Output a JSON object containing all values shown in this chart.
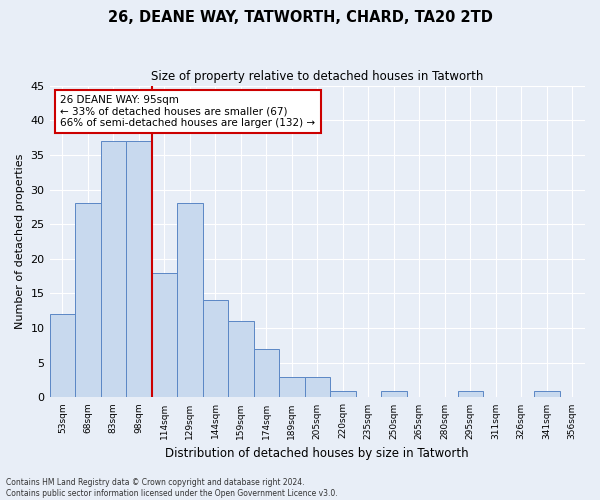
{
  "title": "26, DEANE WAY, TATWORTH, CHARD, TA20 2TD",
  "subtitle": "Size of property relative to detached houses in Tatworth",
  "xlabel": "Distribution of detached houses by size in Tatworth",
  "ylabel": "Number of detached properties",
  "bin_labels": [
    "53sqm",
    "68sqm",
    "83sqm",
    "98sqm",
    "114sqm",
    "129sqm",
    "144sqm",
    "159sqm",
    "174sqm",
    "189sqm",
    "205sqm",
    "220sqm",
    "235sqm",
    "250sqm",
    "265sqm",
    "280sqm",
    "295sqm",
    "311sqm",
    "326sqm",
    "341sqm",
    "356sqm"
  ],
  "bar_values": [
    12,
    28,
    37,
    37,
    18,
    28,
    14,
    11,
    7,
    3,
    3,
    1,
    0,
    1,
    0,
    0,
    1,
    0,
    0,
    1,
    0
  ],
  "bar_color": "#c8d9ee",
  "bar_edge_color": "#5b87c5",
  "vline_x_index": 3,
  "vline_color": "#cc0000",
  "ylim": [
    0,
    45
  ],
  "yticks": [
    0,
    5,
    10,
    15,
    20,
    25,
    30,
    35,
    40,
    45
  ],
  "annotation_text": "26 DEANE WAY: 95sqm\n← 33% of detached houses are smaller (67)\n66% of semi-detached houses are larger (132) →",
  "annotation_box_color": "#ffffff",
  "annotation_box_edge": "#cc0000",
  "footer_line1": "Contains HM Land Registry data © Crown copyright and database right 2024.",
  "footer_line2": "Contains public sector information licensed under the Open Government Licence v3.0.",
  "background_color": "#e8eef7",
  "grid_color": "#ffffff"
}
